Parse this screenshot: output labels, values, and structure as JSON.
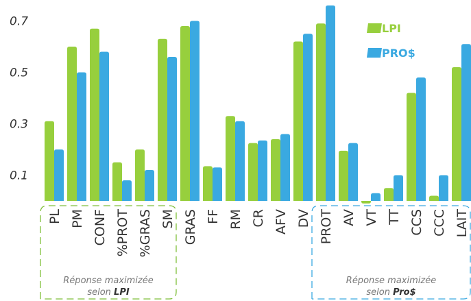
{
  "chart_data": {
    "type": "bar",
    "categories": [
      "PL",
      "PM",
      "CONF",
      "%PROT",
      "%GRAS",
      "SM",
      "GRAS",
      "FF",
      "RM",
      "CR",
      "AFV",
      "DV",
      "PROT",
      "AV",
      "VT",
      "TT",
      "CCS",
      "CCC",
      "LAIT"
    ],
    "series": [
      {
        "name": "LPI",
        "color": "#97cf3d",
        "values": [
          0.31,
          0.6,
          0.67,
          0.15,
          0.2,
          0.63,
          0.68,
          0.135,
          0.33,
          0.225,
          0.24,
          0.62,
          0.69,
          0.195,
          -0.01,
          0.05,
          0.42,
          0.02,
          0.52
        ]
      },
      {
        "name": "PRO$",
        "color": "#3aa9e1",
        "values": [
          0.2,
          0.5,
          0.58,
          0.08,
          0.12,
          0.56,
          0.7,
          0.13,
          0.31,
          0.235,
          0.26,
          0.65,
          0.76,
          0.225,
          0.03,
          0.1,
          0.48,
          0.1,
          0.61
        ]
      }
    ],
    "y_ticks": [
      "0.1",
      "0.3",
      "0.5",
      "0.7"
    ],
    "ylim": [
      0,
      0.76
    ],
    "grid": false,
    "legend_position": "top-right",
    "groups": [
      {
        "label_line1": "Réponse maximizée",
        "label_line2": "selon ",
        "label_bold": "LPI",
        "color": "#7fbf3a",
        "from": 0,
        "to": 5
      },
      {
        "label_line1": "Réponse maximizée",
        "label_line2": "selon ",
        "label_bold": "Pro$",
        "color": "#3aa9e1",
        "from": 12,
        "to": 18
      }
    ]
  }
}
